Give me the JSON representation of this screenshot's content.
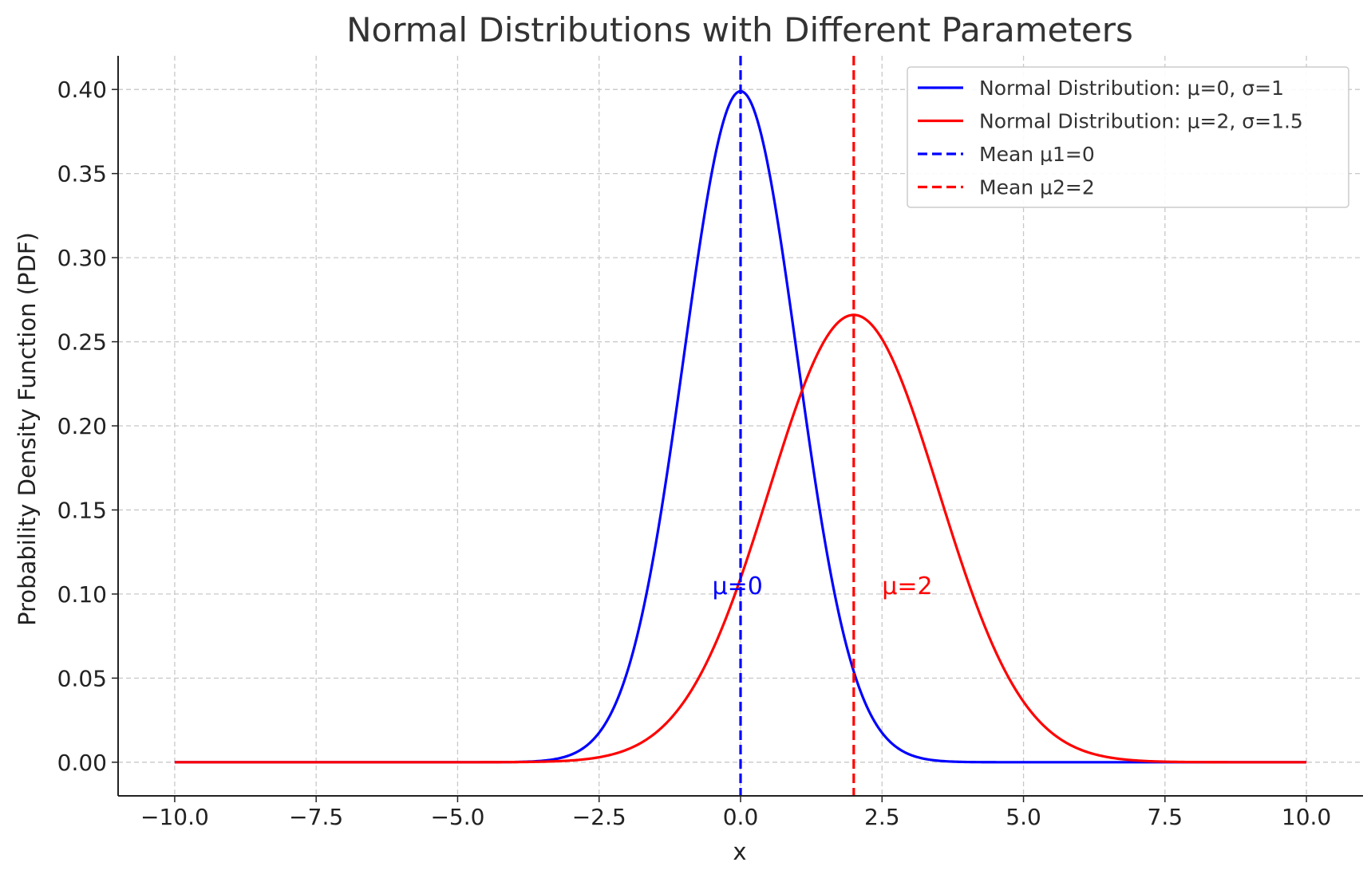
{
  "chart_data": {
    "type": "line",
    "title": "Normal Distributions with Different Parameters",
    "xlabel": "x",
    "ylabel": "Probability Density Function (PDF)",
    "xlim": [
      -11,
      11
    ],
    "ylim": [
      -0.02,
      0.42
    ],
    "x_range": [
      -10,
      10
    ],
    "xticks": [
      -10.0,
      -7.5,
      -5.0,
      -2.5,
      0.0,
      2.5,
      5.0,
      7.5,
      10.0
    ],
    "xtick_labels": [
      "−10.0",
      "−7.5",
      "−5.0",
      "−2.5",
      "0.0",
      "2.5",
      "5.0",
      "7.5",
      "10.0"
    ],
    "yticks": [
      0.0,
      0.05,
      0.1,
      0.15,
      0.2,
      0.25,
      0.3,
      0.35,
      0.4
    ],
    "ytick_labels": [
      "0.00",
      "0.05",
      "0.10",
      "0.15",
      "0.20",
      "0.25",
      "0.30",
      "0.35",
      "0.40"
    ],
    "grid": true,
    "legend_position": "top-right",
    "series": [
      {
        "name": "Normal Distribution: μ=0, σ=1",
        "kind": "normal-pdf",
        "mu": 0,
        "sigma": 1,
        "color": "#0000ff",
        "style": "solid"
      },
      {
        "name": "Normal Distribution: μ=2, σ=1.5",
        "kind": "normal-pdf",
        "mu": 2,
        "sigma": 1.5,
        "color": "#ff0000",
        "style": "solid"
      },
      {
        "name": "Mean μ1=0",
        "kind": "vline",
        "x": 0,
        "color": "#0000ff",
        "style": "dashed"
      },
      {
        "name": "Mean μ2=2",
        "kind": "vline",
        "x": 2,
        "color": "#ff0000",
        "style": "dashed"
      }
    ],
    "annotations": [
      {
        "text": "μ=0",
        "x": -0.5,
        "y": 0.1,
        "color": "#0000ff"
      },
      {
        "text": "μ=2",
        "x": 2.5,
        "y": 0.1,
        "color": "#ff0000"
      }
    ]
  }
}
